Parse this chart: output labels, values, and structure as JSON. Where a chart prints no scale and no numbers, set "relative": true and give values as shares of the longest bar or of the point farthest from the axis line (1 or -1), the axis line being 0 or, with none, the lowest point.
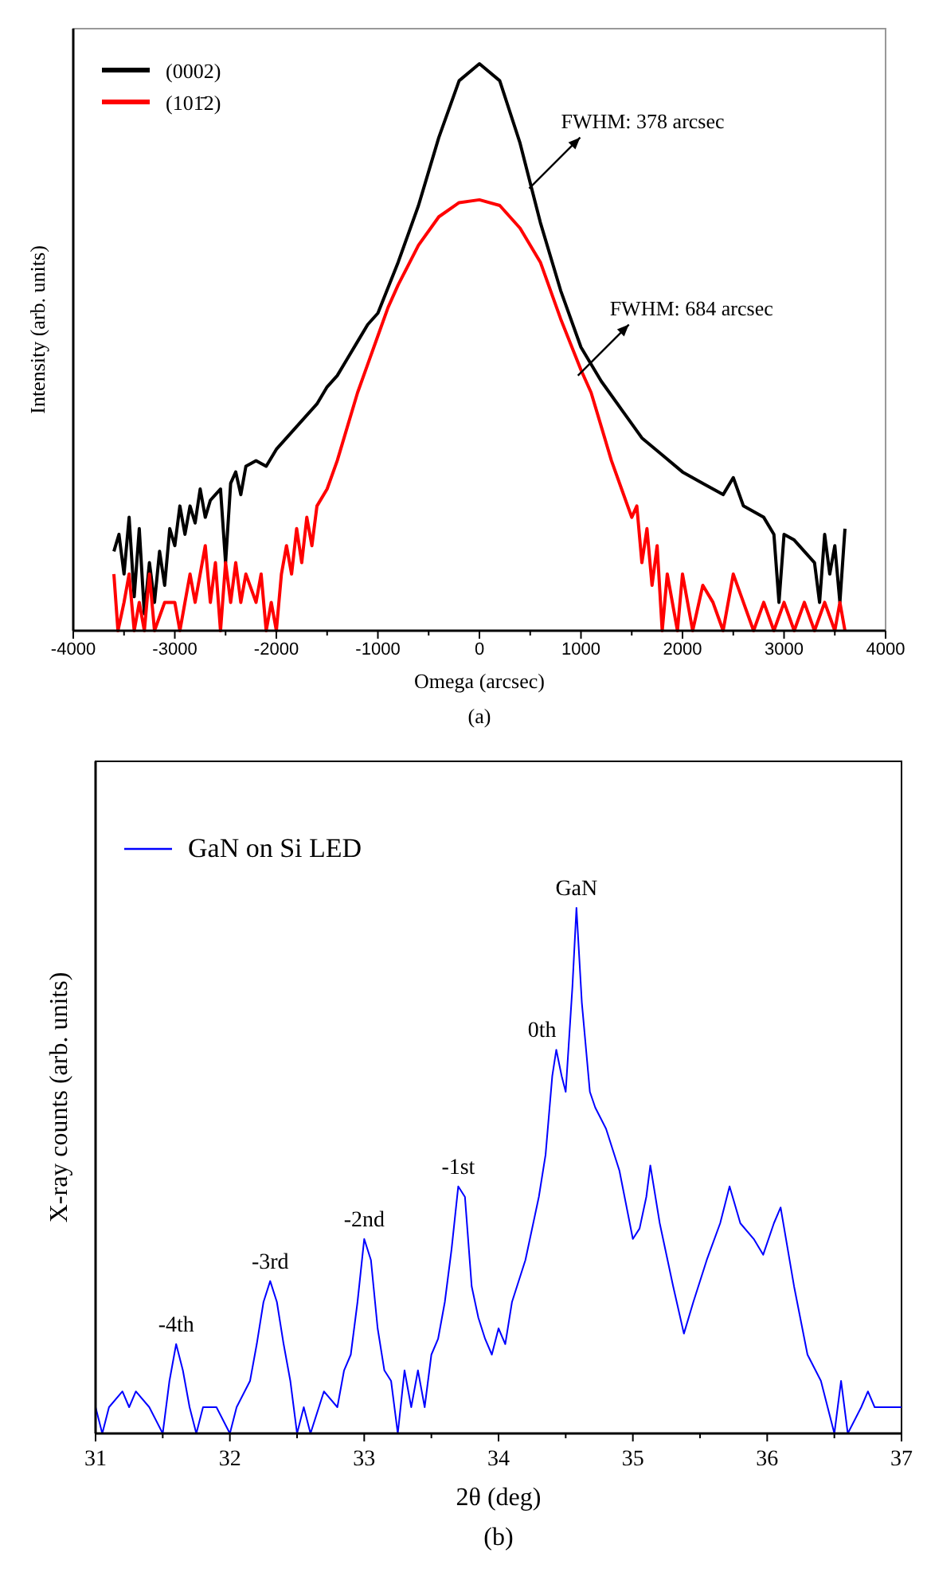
{
  "chart_data": [
    {
      "type": "line",
      "relative": true,
      "xlabel": "Omega (arcsec)",
      "ylabel": "Intensity (arb. units)",
      "legend": "top left",
      "xlim": [
        -4000,
        4000
      ],
      "xticks": [
        -4000,
        {
          "value": -3500,
          "label": null
        },
        -3000,
        {
          "value": -2500,
          "label": null
        },
        -2000,
        {
          "value": -1500,
          "label": null
        },
        -1000,
        {
          "value": -500,
          "label": null
        },
        0,
        {
          "value": 500,
          "label": null
        },
        1000,
        {
          "value": 1500,
          "label": null
        },
        2000,
        {
          "value": 2500,
          "label": null
        },
        3000,
        {
          "value": 3500,
          "label": null
        },
        4000
      ],
      "series": [
        {
          "name": "(0002)",
          "color": "#000000",
          "x": [
            -3600,
            -3550,
            -3500,
            -3450,
            -3400,
            -3350,
            -3300,
            -3250,
            -3200,
            -3150,
            -3100,
            -3050,
            -3000,
            -2950,
            -2900,
            -2850,
            -2800,
            -2750,
            -2700,
            -2650,
            -2600,
            -2550,
            -2500,
            -2450,
            -2400,
            -2350,
            -2300,
            -2200,
            -2100,
            -2000,
            -1900,
            -1800,
            -1700,
            -1600,
            -1500,
            -1400,
            -1300,
            -1200,
            -1100,
            -1000,
            -800,
            -600,
            -400,
            -200,
            0,
            200,
            400,
            600,
            800,
            1000,
            1200,
            1400,
            1600,
            1800,
            2000,
            2200,
            2400,
            2500,
            2600,
            2800,
            2900,
            2950,
            3000,
            3100,
            3200,
            3300,
            3350,
            3400,
            3450,
            3500,
            3550,
            3600
          ],
          "values": [
            0.14,
            0.17,
            0.1,
            0.2,
            0.06,
            0.18,
            0.03,
            0.12,
            0.05,
            0.14,
            0.08,
            0.18,
            0.15,
            0.22,
            0.17,
            0.22,
            0.19,
            0.25,
            0.2,
            0.23,
            0.24,
            0.25,
            0.12,
            0.26,
            0.28,
            0.24,
            0.29,
            0.3,
            0.29,
            0.32,
            0.34,
            0.36,
            0.38,
            0.4,
            0.43,
            0.45,
            0.48,
            0.51,
            0.54,
            0.56,
            0.65,
            0.75,
            0.87,
            0.97,
            1,
            0.97,
            0.86,
            0.72,
            0.6,
            0.5,
            0.44,
            0.39,
            0.34,
            0.31,
            0.28,
            0.26,
            0.24,
            0.27,
            0.22,
            0.2,
            0.17,
            0.05,
            0.17,
            0.16,
            0.14,
            0.12,
            0.05,
            0.17,
            0.1,
            0.15,
            0.05,
            0.18
          ]
        },
        {
          "name": "(101̄2)",
          "color": "#ff0000",
          "x": [
            -3600,
            -3560,
            -3500,
            -3450,
            -3400,
            -3350,
            -3300,
            -3250,
            -3200,
            -3100,
            -3000,
            -2950,
            -2900,
            -2850,
            -2800,
            -2700,
            -2650,
            -2600,
            -2550,
            -2500,
            -2450,
            -2400,
            -2350,
            -2300,
            -2200,
            -2150,
            -2100,
            -2050,
            -2000,
            -1950,
            -1900,
            -1850,
            -1800,
            -1750,
            -1700,
            -1650,
            -1600,
            -1500,
            -1400,
            -1300,
            -1200,
            -1100,
            -1000,
            -900,
            -800,
            -600,
            -400,
            -200,
            0,
            200,
            400,
            600,
            800,
            1000,
            1100,
            1200,
            1300,
            1400,
            1500,
            1550,
            1600,
            1650,
            1700,
            1750,
            1800,
            1850,
            1900,
            1950,
            2000,
            2050,
            2100,
            2200,
            2300,
            2400,
            2500,
            2600,
            2700,
            2800,
            2900,
            3000,
            3100,
            3200,
            3300,
            3400,
            3500,
            3550,
            3600
          ],
          "values": [
            0.1,
            0,
            0.05,
            0.1,
            0,
            0.05,
            0,
            0.1,
            0,
            0.05,
            0.05,
            0,
            0.05,
            0.1,
            0.05,
            0.15,
            0.05,
            0.12,
            0,
            0.12,
            0.05,
            0.12,
            0.05,
            0.1,
            0.05,
            0.1,
            0,
            0.05,
            0,
            0.1,
            0.15,
            0.1,
            0.18,
            0.12,
            0.2,
            0.15,
            0.22,
            0.25,
            0.3,
            0.36,
            0.42,
            0.47,
            0.52,
            0.57,
            0.61,
            0.68,
            0.73,
            0.755,
            0.76,
            0.75,
            0.71,
            0.65,
            0.55,
            0.46,
            0.42,
            0.36,
            0.3,
            0.25,
            0.2,
            0.22,
            0.12,
            0.18,
            0.08,
            0.15,
            0,
            0.1,
            0.05,
            0,
            0.1,
            0.05,
            0,
            0.08,
            0.05,
            0,
            0.1,
            0.05,
            0,
            0.05,
            0,
            0.05,
            0,
            0.05,
            0,
            0.05,
            0,
            0.05,
            0
          ]
        }
      ],
      "annotations": [
        {
          "text": "FWHM: 378 arcsec",
          "x": 490,
          "y": 0.78
        },
        {
          "text": "FWHM: 684 arcsec",
          "x": 970,
          "y": 0.45
        },
        "(a)"
      ]
    },
    {
      "type": "line",
      "relative": true,
      "xlabel": "2θ (deg)",
      "ylabel": "X-ray counts (arb. units)",
      "legend": "top left",
      "xlim": [
        31,
        37
      ],
      "xticks": [
        31,
        {
          "value": 31.5,
          "label": null
        },
        32,
        {
          "value": 32.5,
          "label": null
        },
        33,
        {
          "value": 33.5,
          "label": null
        },
        34,
        {
          "value": 34.5,
          "label": null
        },
        35,
        {
          "value": 35.5,
          "label": null
        },
        36,
        {
          "value": 36.5,
          "label": null
        },
        37
      ],
      "series": [
        {
          "name": "GaN on Si LED",
          "color": "#0000ff",
          "x": [
            31.0,
            31.05,
            31.1,
            31.2,
            31.25,
            31.3,
            31.4,
            31.5,
            31.55,
            31.6,
            31.65,
            31.7,
            31.75,
            31.8,
            31.9,
            32.0,
            32.05,
            32.15,
            32.2,
            32.25,
            32.3,
            32.35,
            32.4,
            32.45,
            32.5,
            32.55,
            32.6,
            32.7,
            32.8,
            32.85,
            32.9,
            32.95,
            33.0,
            33.05,
            33.1,
            33.15,
            33.2,
            33.25,
            33.3,
            33.35,
            33.4,
            33.45,
            33.5,
            33.55,
            33.6,
            33.65,
            33.7,
            33.75,
            33.8,
            33.85,
            33.9,
            33.95,
            34.0,
            34.05,
            34.1,
            34.2,
            34.3,
            34.35,
            34.4,
            34.43,
            34.47,
            34.5,
            34.55,
            34.58,
            34.62,
            34.68,
            34.72,
            34.8,
            34.9,
            35.0,
            35.05,
            35.1,
            35.13,
            35.2,
            35.3,
            35.38,
            35.45,
            35.55,
            35.65,
            35.72,
            35.8,
            35.9,
            35.97,
            36.05,
            36.1,
            36.2,
            36.3,
            36.4,
            36.45,
            36.5,
            36.55,
            36.6,
            36.7,
            36.75,
            36.8,
            36.9,
            37.0
          ],
          "values": [
            0.05,
            0,
            0.05,
            0.08,
            0.05,
            0.08,
            0.05,
            0,
            0.1,
            0.17,
            0.12,
            0.05,
            0,
            0.05,
            0.05,
            0,
            0.05,
            0.1,
            0.17,
            0.25,
            0.29,
            0.25,
            0.17,
            0.1,
            0,
            0.05,
            0,
            0.08,
            0.05,
            0.12,
            0.15,
            0.25,
            0.37,
            0.33,
            0.2,
            0.12,
            0.1,
            0,
            0.12,
            0.05,
            0.12,
            0.05,
            0.15,
            0.18,
            0.25,
            0.35,
            0.47,
            0.45,
            0.28,
            0.22,
            0.18,
            0.15,
            0.2,
            0.17,
            0.25,
            0.33,
            0.45,
            0.53,
            0.68,
            0.73,
            0.68,
            0.65,
            0.85,
            1,
            0.82,
            0.65,
            0.62,
            0.58,
            0.5,
            0.37,
            0.39,
            0.45,
            0.51,
            0.4,
            0.28,
            0.19,
            0.25,
            0.33,
            0.4,
            0.47,
            0.4,
            0.37,
            0.34,
            0.4,
            0.43,
            0.28,
            0.15,
            0.1,
            0.05,
            0,
            0.1,
            0,
            0.05,
            0.08,
            0.05,
            0.05,
            0.05
          ]
        }
      ],
      "annotations": [
        {
          "text": "-4th",
          "x": 31.6,
          "y": 0.17
        },
        {
          "text": "-3rd",
          "x": 32.3,
          "y": 0.29
        },
        {
          "text": "-2nd",
          "x": 33.0,
          "y": 0.37
        },
        {
          "text": "-1st",
          "x": 33.7,
          "y": 0.47
        },
        {
          "text": "0th",
          "x": 34.43,
          "y": 0.73
        },
        {
          "text": "GaN",
          "x": 34.58,
          "y": 1
        },
        "(b)"
      ]
    }
  ]
}
